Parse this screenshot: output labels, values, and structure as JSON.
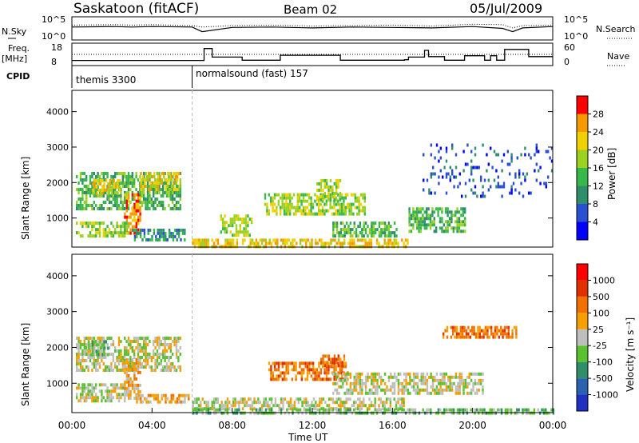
{
  "header": {
    "title": "Saskatoon (fitACF)",
    "beam": "Beam 02",
    "date": "05/Jul/2009"
  },
  "chart_data": [
    {
      "type": "line",
      "panel": "nsky-nsearch",
      "labels": {
        "left": "N.Sky",
        "right": "N.Search",
        "left_top": "10^5",
        "left_bottom": "10^0",
        "right_top": "10^5",
        "right_bottom": "10^0"
      },
      "ylim": [
        0,
        5
      ],
      "x": [
        0,
        2,
        3,
        4,
        6,
        6.5,
        8,
        10,
        12,
        14,
        16,
        18,
        20,
        21.5,
        22,
        22.5,
        24
      ],
      "nsky": [
        2.8,
        2.9,
        2.8,
        2.9,
        2.8,
        1.8,
        2.7,
        2.8,
        2.6,
        2.8,
        2.7,
        2.6,
        2.9,
        2.5,
        1.8,
        2.6,
        2.9
      ],
      "nsearch": [
        3.2,
        3.3,
        3.2,
        3.3,
        3.1,
        2.8,
        3.1,
        3.2,
        3.0,
        3.1,
        3.2,
        3.0,
        3.4,
        3.3,
        2.6,
        3.1,
        3.2
      ]
    },
    {
      "type": "line",
      "panel": "freq-nave",
      "labels": {
        "left": "Freq.",
        "left_unit": "[MHz]",
        "right": "Nave",
        "left_top": "18",
        "left_bottom": "8",
        "right_top": "60",
        "right_bottom": "0"
      },
      "ylim": [
        8,
        18
      ],
      "x": [
        0,
        6,
        6.6,
        7.0,
        8.5,
        9.0,
        10.4,
        10.6,
        13.4,
        13.6,
        16.6,
        16.8,
        17.6,
        17.8,
        18.6,
        19.2,
        19.6,
        19.8,
        20.6,
        20.9,
        21.2,
        21.6,
        22.6,
        22.8,
        24
      ],
      "freq": [
        10.3,
        10.3,
        15.6,
        11.8,
        10.4,
        10.4,
        12.6,
        12.6,
        10.4,
        10.4,
        10.6,
        11.8,
        14.8,
        12.0,
        10.4,
        10.4,
        12.4,
        12.4,
        10.4,
        12.4,
        10.4,
        15.2,
        15.2,
        12.0,
        12.0
      ],
      "nave_level": 30,
      "nave_ylim": [
        0,
        60
      ]
    },
    {
      "type": "table",
      "panel": "cpid",
      "label": "CPID",
      "segments": [
        {
          "start": 0,
          "end": 6,
          "text": "themis 3300"
        },
        {
          "start": 6,
          "end": 24,
          "text": "normalsound (fast) 157"
        }
      ]
    },
    {
      "type": "heatmap",
      "panel": "power",
      "ylabel": "Slant Range [km]",
      "ylim": [
        180,
        4600
      ],
      "yticks": [
        "1000",
        "2000",
        "3000",
        "4000"
      ],
      "colorbar": {
        "label": "Power [dB]",
        "ticks": [
          "4",
          "8",
          "12",
          "16",
          "20",
          "24",
          "28"
        ],
        "colors": [
          "#0000ff",
          "#2a4fd0",
          "#2f8f6a",
          "#36b84a",
          "#9cd021",
          "#f0d000",
          "#f59a00",
          "#ff0000"
        ]
      },
      "regions": [
        {
          "t0": 0.2,
          "t1": 5.4,
          "r0": 1300,
          "r1": 2300,
          "level": 3
        },
        {
          "t0": 1.0,
          "t1": 2.4,
          "r0": 1700,
          "r1": 2100,
          "level": 5
        },
        {
          "t0": 3.4,
          "t1": 5.4,
          "r0": 1800,
          "r1": 2300,
          "level": 5
        },
        {
          "t0": 2.6,
          "t1": 3.4,
          "r0": 600,
          "r1": 1700,
          "level": 6
        },
        {
          "t0": 0.2,
          "t1": 2.8,
          "r0": 500,
          "r1": 900,
          "level": 4
        },
        {
          "t0": 3.0,
          "t1": 5.6,
          "r0": 400,
          "r1": 700,
          "level": 2
        },
        {
          "t0": 6.0,
          "t1": 16.8,
          "r0": 180,
          "r1": 420,
          "level": 5
        },
        {
          "t0": 7.4,
          "t1": 9.0,
          "r0": 500,
          "r1": 1100,
          "level": 4
        },
        {
          "t0": 9.6,
          "t1": 14.6,
          "r0": 1100,
          "r1": 1700,
          "level": 4
        },
        {
          "t0": 12.2,
          "t1": 13.4,
          "r0": 1500,
          "r1": 2100,
          "level": 4
        },
        {
          "t0": 13.0,
          "t1": 16.2,
          "r0": 500,
          "r1": 900,
          "level": 3
        },
        {
          "t0": 16.8,
          "t1": 19.6,
          "r0": 600,
          "r1": 1300,
          "level": 3
        },
        {
          "t0": 17.5,
          "t1": 24.0,
          "r0": 1600,
          "r1": 3100,
          "level": 1,
          "sparse": true
        }
      ]
    },
    {
      "type": "heatmap",
      "panel": "velocity",
      "xlabel": "Time UT",
      "ylabel": "Slant Range [km]",
      "ylim": [
        180,
        4600
      ],
      "yticks": [
        "1000",
        "2000",
        "3000",
        "4000"
      ],
      "xticks": [
        "00:00",
        "04:00",
        "08:00",
        "12:00",
        "16:00",
        "20:00",
        "00:00"
      ],
      "xlim": [
        0,
        24
      ],
      "colorbar": {
        "label": "Velocity [m s⁻¹]",
        "ticks": [
          "1000",
          "500",
          "100",
          "25",
          "-25",
          "-100",
          "-500",
          "-1000"
        ],
        "colors": [
          "#2030c0",
          "#2a62b0",
          "#2f8f6a",
          "#59c12e",
          "#bebebe",
          "#f5a000",
          "#f07000",
          "#e03000",
          "#ff0000"
        ]
      },
      "regions": [
        {
          "t0": 0.2,
          "t1": 5.4,
          "r0": 1400,
          "r1": 2300,
          "level": 4
        },
        {
          "t0": 0.8,
          "t1": 1.8,
          "r0": 1800,
          "r1": 2200,
          "level": 3
        },
        {
          "t0": 2.6,
          "t1": 3.4,
          "r0": 600,
          "r1": 1700,
          "level": 5
        },
        {
          "t0": 0.2,
          "t1": 2.6,
          "r0": 500,
          "r1": 1000,
          "level": 4
        },
        {
          "t0": 3.2,
          "t1": 5.8,
          "r0": 480,
          "r1": 700,
          "level": 5
        },
        {
          "t0": 6.0,
          "t1": 16.6,
          "r0": 250,
          "r1": 600,
          "level": 4
        },
        {
          "t0": 6.0,
          "t1": 24.0,
          "r0": 180,
          "r1": 300,
          "level": 3
        },
        {
          "t0": 9.8,
          "t1": 13.8,
          "r0": 1100,
          "r1": 1600,
          "level": 6
        },
        {
          "t0": 12.4,
          "t1": 13.6,
          "r0": 1500,
          "r1": 1800,
          "level": 6
        },
        {
          "t0": 13.0,
          "t1": 20.5,
          "r0": 700,
          "r1": 1300,
          "level": 4
        },
        {
          "t0": 18.5,
          "t1": 22.2,
          "r0": 2300,
          "r1": 2600,
          "level": 6
        }
      ]
    }
  ]
}
